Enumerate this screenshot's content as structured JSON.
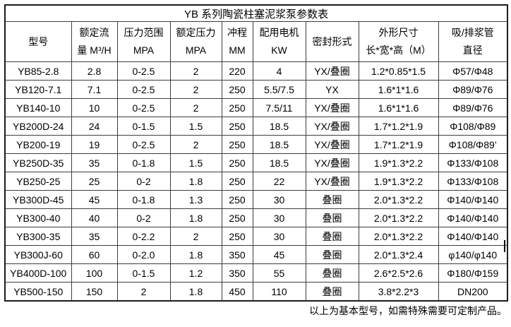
{
  "title": "YB 系列陶瓷柱塞泥浆泵参数表",
  "columns": [
    {
      "id": "model",
      "line1": "型号",
      "line2": ""
    },
    {
      "id": "rated-flow",
      "line1": "额定流",
      "line2": "量 M³/H"
    },
    {
      "id": "pressure-range",
      "line1": "压力范围",
      "line2": "MPA"
    },
    {
      "id": "rated-pressure",
      "line1": "额定压力",
      "line2": "MPA"
    },
    {
      "id": "stroke",
      "line1": "冲程",
      "line2": "MM"
    },
    {
      "id": "motor-power",
      "line1": "配用电机",
      "line2": "KW"
    },
    {
      "id": "seal-type",
      "line1": "密封形式",
      "line2": ""
    },
    {
      "id": "dimensions",
      "line1": "外形尺寸",
      "line2": "长*宽*高（M）"
    },
    {
      "id": "pipe-diameter",
      "line1": "吸/排浆管",
      "line2": "直径"
    }
  ],
  "rows": [
    [
      "YB85-2.8",
      "2.8",
      "0-2.5",
      "2",
      "220",
      "4",
      "YX/叠圈",
      "1.2*0.85*1.5",
      "Φ57/Φ48"
    ],
    [
      "YB120-7.1",
      "7.1",
      "0-2.5",
      "2",
      "250",
      "5.5/7.5",
      "YX",
      "1.6*1*1.6",
      "Φ89/Φ76"
    ],
    [
      "YB140-10",
      "10",
      "0-2.5",
      "2",
      "250",
      "7.5/11",
      "YX/叠圈",
      "1.6*1*1.6",
      "Φ89/Φ76"
    ],
    [
      "YB200D-24",
      "24",
      "0-1.5",
      "1.5",
      "250",
      "18.5",
      "YX/叠圈",
      "1.7*1.2*1.9",
      "Φ108/Φ89"
    ],
    [
      "YB200-19",
      "19",
      "0-2.5",
      "2",
      "250",
      "18.5",
      "YX/叠圈",
      "1.7*1.2*1.9",
      "Φ108/Φ89’"
    ],
    [
      "YB250D-35",
      "35",
      "0-1.8",
      "1.5",
      "250",
      "18.5",
      "YX/叠圈",
      "1.9*1.3*2.2",
      "Φ133/Φ108"
    ],
    [
      "YB250-25",
      "25",
      "0-2",
      "1.8",
      "250",
      "22",
      "YX/叠圈",
      "1.9*1.3*2.2",
      "Φ133/Φ108"
    ],
    [
      "YB300D-45",
      "45",
      "0-1.8",
      "1.3",
      "250",
      "30",
      "叠圈",
      "2.0*1.3*2.2",
      "Φ140/Φ140"
    ],
    [
      "YB300-40",
      "40",
      "0-2",
      "1.8",
      "250",
      "30",
      "叠圈",
      "2.0*1.3*2.2",
      "Φ140/Φ140"
    ],
    [
      "YB300-35",
      "35",
      "0-2.2",
      "2",
      "250",
      "30",
      "叠圈",
      "2.0*1.3*2.2",
      "Φ140/Φ140"
    ],
    [
      "YB300J-60",
      "60",
      "0-2.0",
      "1.8",
      "350",
      "45",
      "叠圈",
      "2.0*1.3*2.4",
      "φ140/φ140"
    ],
    [
      "YB400D-100",
      "100",
      "0-1.5",
      "1.2",
      "350",
      "55",
      "叠圈",
      "2.6*2.5*2.6",
      "Φ180/Φ159"
    ],
    [
      "YB500-150",
      "150",
      "2",
      "1.8",
      "450",
      "110",
      "叠圈",
      "3.8*2.2*3",
      "DN200"
    ]
  ],
  "note": "以上为基本型号，如需特殊需要可定制产品。",
  "colors": {
    "background": "#ffffff",
    "text": "#000000",
    "border_inner": "#3d3d3d",
    "border_outer": "#1c1c1c"
  }
}
